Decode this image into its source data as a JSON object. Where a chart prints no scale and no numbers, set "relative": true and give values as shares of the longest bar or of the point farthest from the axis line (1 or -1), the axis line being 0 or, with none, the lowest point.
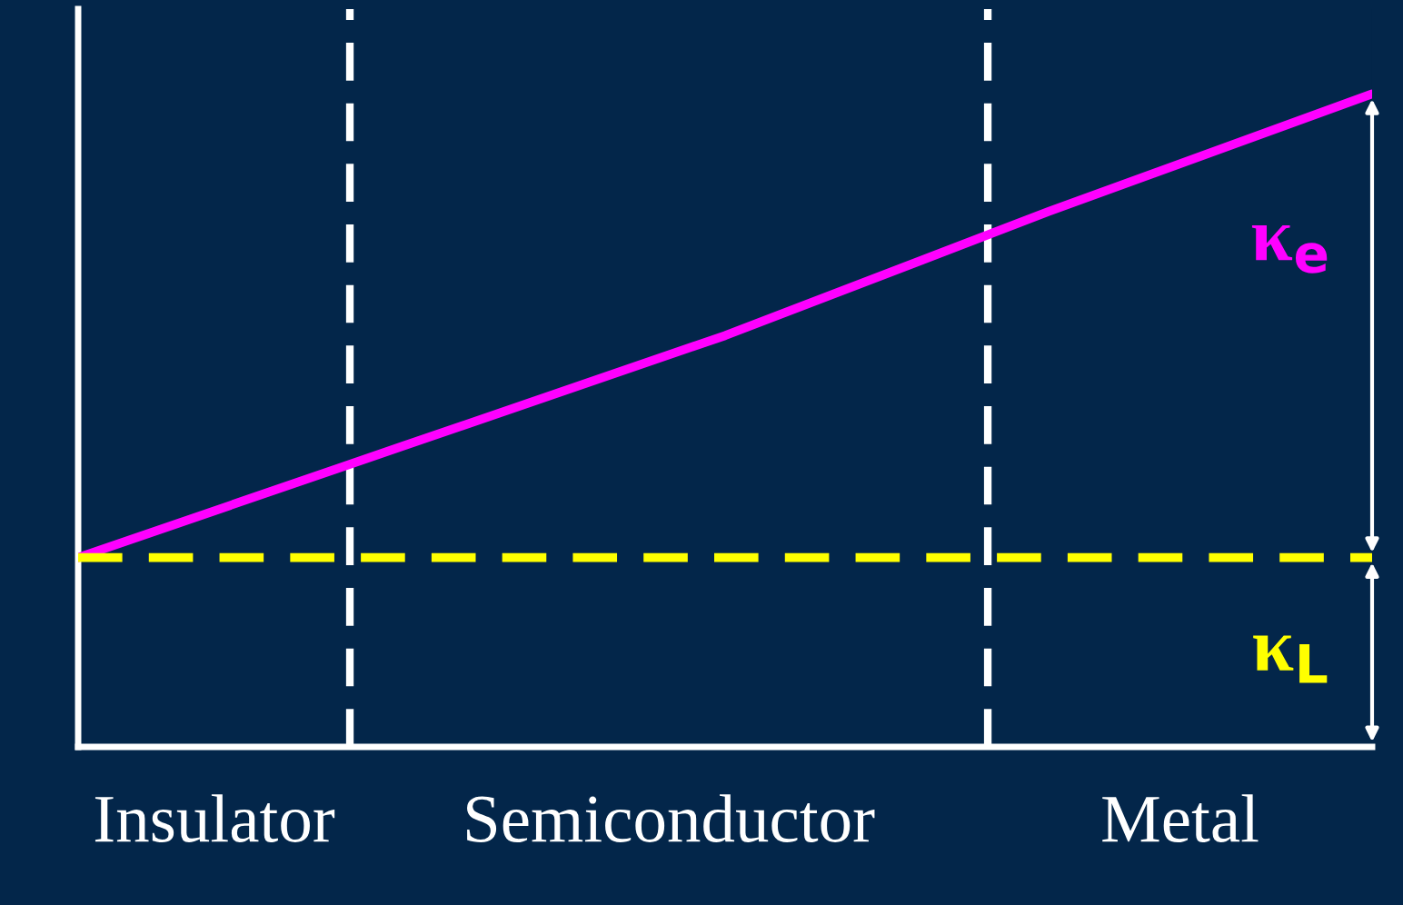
{
  "chart_data": {
    "type": "line",
    "relative": true,
    "categories": [
      null,
      null,
      null,
      null,
      null
    ],
    "series": [
      {
        "name": "κ$_{e}$",
        "color": "#ff00ff",
        "values": [
          0.29,
          0.46,
          0.63,
          0.82,
          1.0
        ],
        "line_style": "solid"
      },
      {
        "name": "κ$_{L}$",
        "color": "#ffff00",
        "values": [
          0.29,
          0.29,
          0.29,
          0.29,
          0.29
        ],
        "line_style": "dashed"
      }
    ],
    "annotations": [
      "Insulator",
      "Semiconductor",
      "Metal"
    ],
    "legend": false,
    "marker": "none"
  }
}
